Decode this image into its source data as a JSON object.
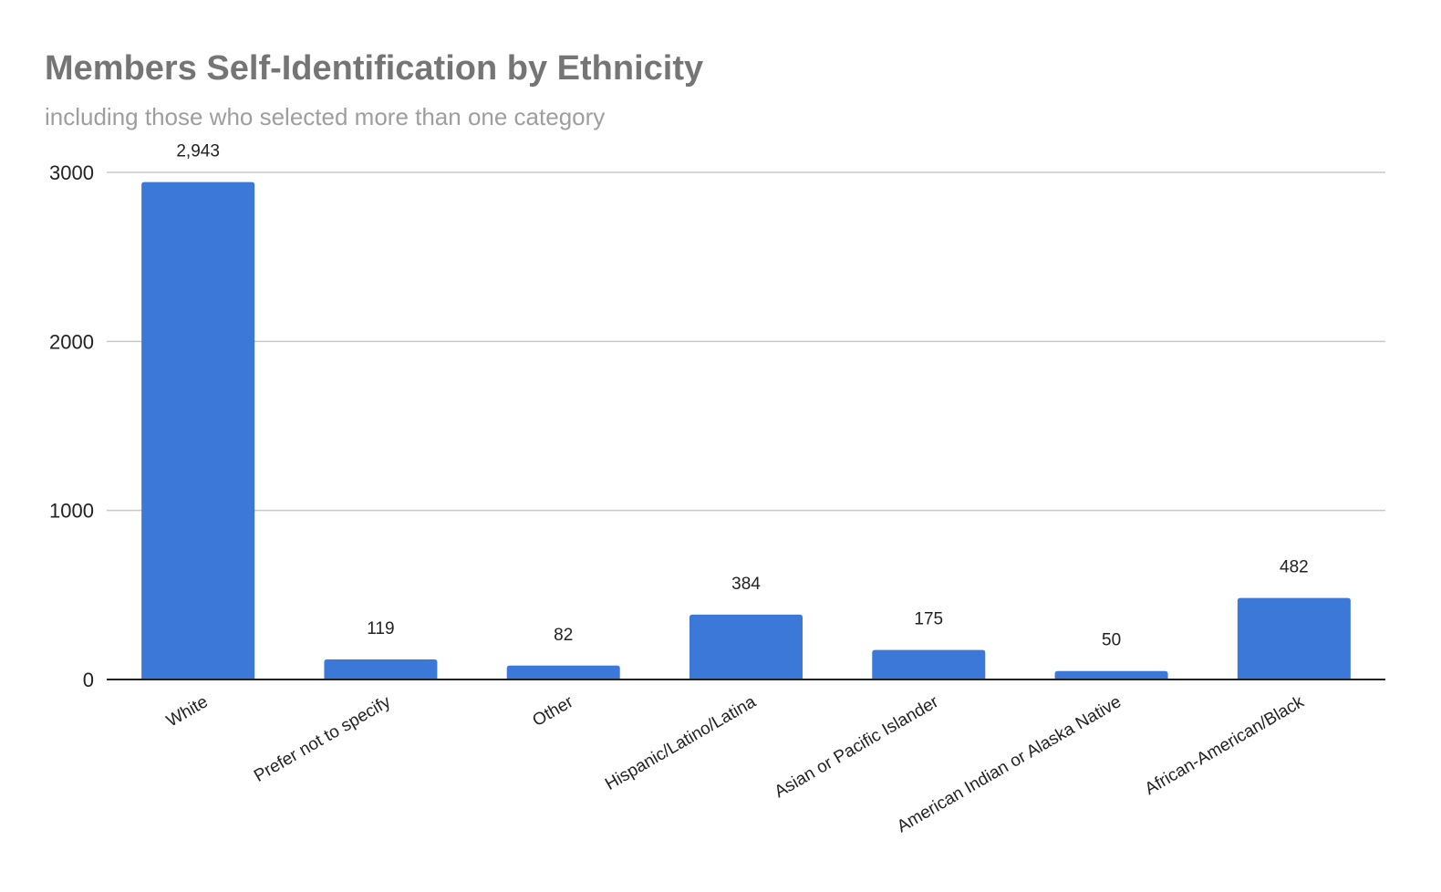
{
  "chart_data": {
    "type": "bar",
    "title": "Members Self-Identification by Ethnicity",
    "subtitle": "including those who selected more than one category",
    "xlabel": "",
    "ylabel": "",
    "categories": [
      "White",
      "Prefer not to specify",
      "Other",
      "Hispanic/Latino/Latina",
      "Asian or Pacific Islander",
      "American Indian or Alaska Native",
      "African-American/Black"
    ],
    "values": [
      2943,
      119,
      82,
      384,
      175,
      50,
      482
    ],
    "data_labels": [
      "2,943",
      "119",
      "82",
      "384",
      "175",
      "50",
      "482"
    ],
    "ylim": [
      0,
      3000
    ],
    "yticks": [
      0,
      1000,
      2000,
      3000
    ],
    "grid": true,
    "legend": "none",
    "bar_color": "#3c78d8"
  }
}
